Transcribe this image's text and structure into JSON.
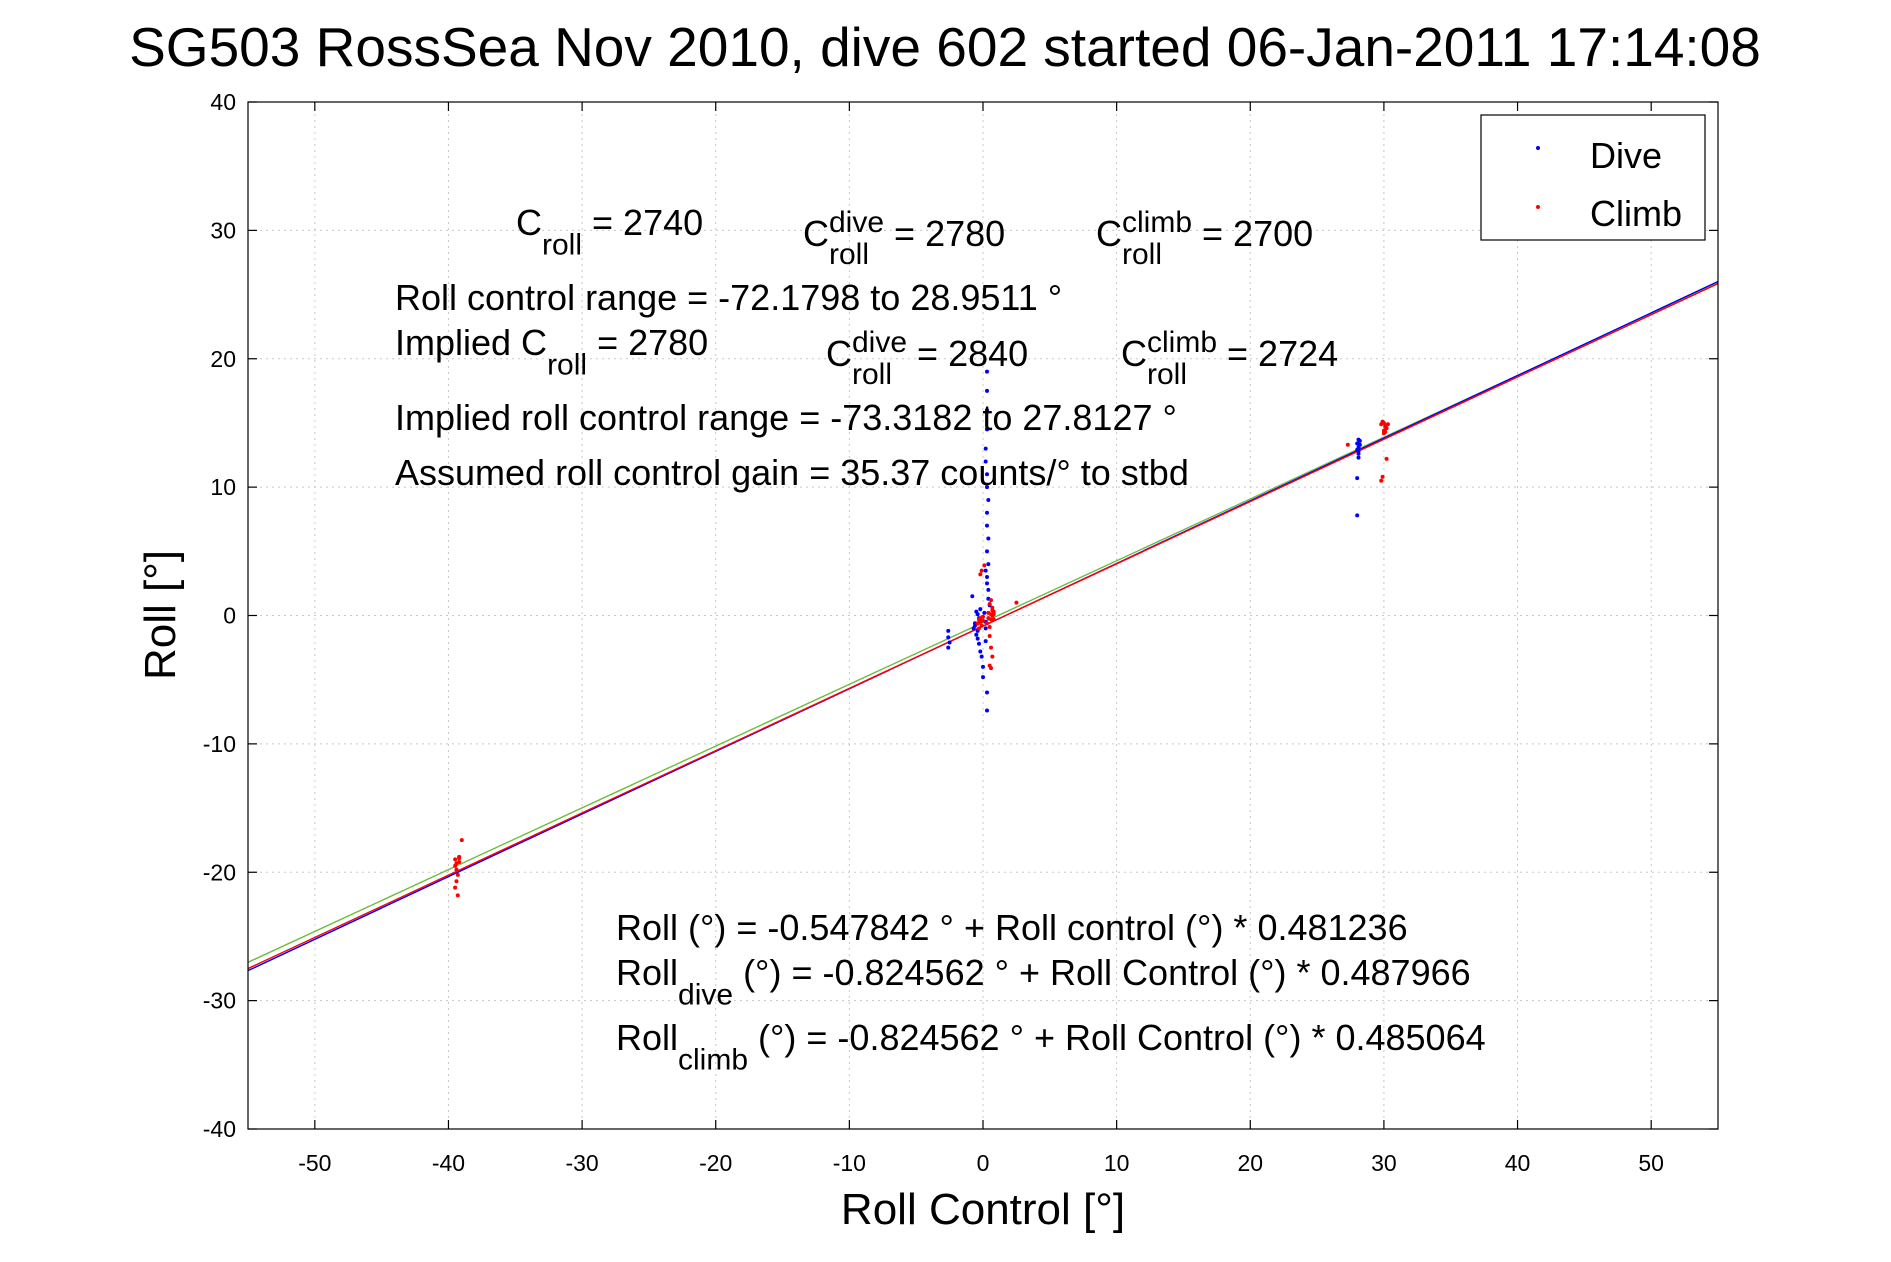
{
  "chart_data": {
    "type": "scatter",
    "title": "SG503 RossSea Nov 2010, dive 602 started 06-Jan-2011 17:14:08",
    "xlabel": "Roll Control [°]",
    "ylabel": "Roll [°]",
    "xlim": [
      -55,
      55
    ],
    "ylim": [
      -40,
      40
    ],
    "xticks": [
      -50,
      -40,
      -30,
      -20,
      -10,
      0,
      10,
      20,
      30,
      40,
      50
    ],
    "yticks": [
      -40,
      -30,
      -20,
      -10,
      0,
      10,
      20,
      30,
      40
    ],
    "grid": true,
    "legend_position": "top-right",
    "legend": [
      {
        "name": "Dive",
        "color": "#0000ff"
      },
      {
        "name": "Climb",
        "color": "#ff0000"
      }
    ],
    "series": [
      {
        "name": "Dive",
        "color": "#0000ff",
        "x": [
          -2.6,
          -2.6,
          -2.5,
          -2.6,
          -0.8,
          -0.6,
          -0.4,
          -0.7,
          -0.5,
          -0.3,
          -0.2,
          -0.4,
          -0.6,
          -0.5,
          -0.3,
          -0.4,
          -0.2,
          -0.1,
          0.0,
          0.0,
          0.1,
          0.2,
          0.2,
          0.2,
          0.3,
          0.3,
          0.3,
          0.3,
          0.3,
          0.3,
          0.2,
          0.2,
          0.3,
          0.3,
          0.4,
          0.3,
          0.3,
          0.4,
          0.3,
          0.4,
          0.2,
          0.3,
          0.3,
          0.4,
          0.4,
          0.5,
          28.0,
          28.0,
          28.1,
          28.1,
          28.0,
          28.1,
          28.0,
          28.2,
          28.1,
          28.2,
          28.1
        ],
        "y": [
          -1.2,
          -1.7,
          -2.1,
          -2.5,
          1.5,
          -0.6,
          0.1,
          -1.0,
          -1.5,
          -2.2,
          -2.8,
          -1.8,
          -0.8,
          0.3,
          -0.2,
          -1.2,
          0.5,
          -3.2,
          -4.0,
          -4.8,
          0.2,
          -0.5,
          -1.0,
          -2.0,
          -6.0,
          -7.4,
          19.0,
          17.5,
          16.0,
          14.5,
          13.0,
          12.0,
          11.0,
          10.0,
          9.0,
          8.0,
          7.0,
          6.0,
          5.0,
          4.0,
          3.5,
          3.0,
          2.5,
          2.0,
          1.3,
          0.8,
          7.8,
          10.7,
          12.3,
          12.6,
          12.9,
          13.1,
          13.4,
          13.6,
          12.8,
          13.3,
          13.7
        ]
      },
      {
        "name": "Climb",
        "color": "#ff0000",
        "x": [
          -39.5,
          -39.4,
          -39.2,
          -39.0,
          -39.3,
          -39.4,
          -39.5,
          -39.3,
          -39.2,
          -39.5,
          -39.4,
          -39.2,
          -0.3,
          -0.4,
          -0.2,
          -0.1,
          -0.3,
          0.0,
          0.0,
          -0.2,
          0.3,
          0.5,
          0.6,
          0.7,
          0.8,
          0.7,
          0.5,
          0.6,
          0.4,
          0.8,
          0.5,
          0.6,
          0.7,
          0.5,
          0.6,
          0.8,
          0.7,
          0.4,
          0.6,
          2.5,
          -0.2,
          -0.1,
          0.1,
          27.3,
          29.8,
          29.9,
          30.0,
          30.1,
          29.8,
          30.0,
          29.9,
          30.1,
          30.2,
          30.0,
          30.1,
          29.9,
          30.2,
          30.3
        ],
        "y": [
          -19.5,
          -19.8,
          -19.2,
          -17.5,
          -20.2,
          -20.7,
          -21.2,
          -21.8,
          -18.9,
          -19.0,
          -19.3,
          -18.8,
          -0.3,
          -0.6,
          -0.2,
          -0.8,
          -1.0,
          -0.4,
          -0.1,
          -0.5,
          -0.6,
          -0.9,
          -0.3,
          0.0,
          0.3,
          0.6,
          0.9,
          1.2,
          0.2,
          -0.3,
          -1.6,
          -2.5,
          -3.2,
          -3.9,
          -4.1,
          0.1,
          0.4,
          -0.2,
          0.1,
          1.0,
          3.2,
          3.5,
          3.9,
          13.3,
          10.5,
          10.8,
          14.4,
          14.7,
          14.9,
          15.0,
          15.1,
          14.8,
          14.6,
          14.2,
          14.3,
          15.0,
          12.2,
          14.9
        ]
      }
    ],
    "fit_lines": [
      {
        "intercept": -0.547842,
        "slope": 0.481236,
        "color": "#6cbd3f"
      },
      {
        "intercept": -0.824562,
        "slope": 0.487966,
        "color": "#0000ff"
      },
      {
        "intercept": -0.824562,
        "slope": 0.485064,
        "color": "#ff0000"
      }
    ]
  },
  "annotations": {
    "c_roll": {
      "base": "C",
      "sub": "roll",
      "rest": " = 2740"
    },
    "c_roll_dive": {
      "base": "C",
      "sup": "dive",
      "sub": "roll",
      "rest": " = 2780"
    },
    "c_roll_climb": {
      "base": "C",
      "sup": "climb",
      "sub": "roll",
      "rest": " = 2700"
    },
    "range": "Roll control range = -72.1798 to 28.9511 °",
    "implied_c_roll": {
      "base": "Implied C",
      "sub": "roll",
      "rest": " = 2780"
    },
    "implied_c_roll_dive": {
      "base": "C",
      "sup": "dive",
      "sub": "roll",
      "rest": " = 2840"
    },
    "implied_c_roll_climb": {
      "base": "C",
      "sup": "climb",
      "sub": "roll",
      "rest": " = 2724"
    },
    "implied_range": "Implied roll control range = -73.3182 to 27.8127 °",
    "gain": "Assumed roll control gain = 35.37 counts/° to stbd",
    "fit_all": "Roll (°) = -0.547842 ° + Roll control (°) * 0.481236",
    "fit_dive": {
      "base": "Roll",
      "sub": "dive",
      "rest": " (°) = -0.824562 ° + Roll Control (°) * 0.487966"
    },
    "fit_climb": {
      "base": "Roll",
      "sub": "climb",
      "rest": " (°) = -0.824562 ° + Roll Control (°) * 0.485064"
    }
  }
}
